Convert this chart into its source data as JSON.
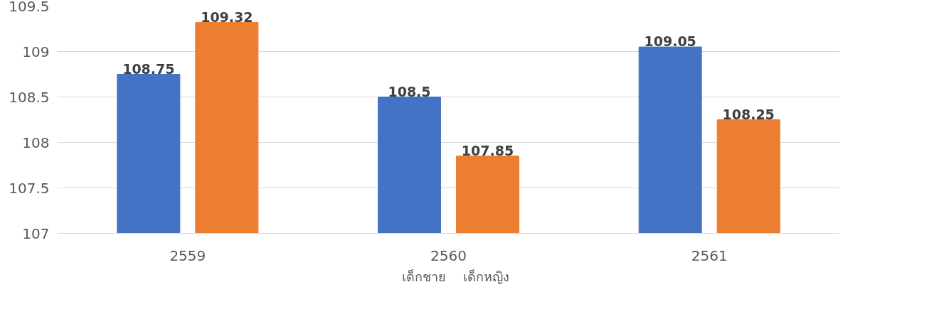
{
  "chart_data": {
    "type": "bar",
    "categories": [
      "2559",
      "2560",
      "2561"
    ],
    "series": [
      {
        "name": "เด็กชาย",
        "color": "#4472c4",
        "values": [
          108.75,
          108.5,
          109.05
        ]
      },
      {
        "name": "เด็กหญิง",
        "color": "#ed7d31",
        "values": [
          109.32,
          107.85,
          108.25
        ]
      }
    ],
    "ylim": [
      107,
      109.5
    ],
    "yticks": [
      107,
      107.5,
      108,
      108.5,
      109,
      109.5
    ],
    "grid": "y",
    "legend": "bottom",
    "data_labels": true
  }
}
